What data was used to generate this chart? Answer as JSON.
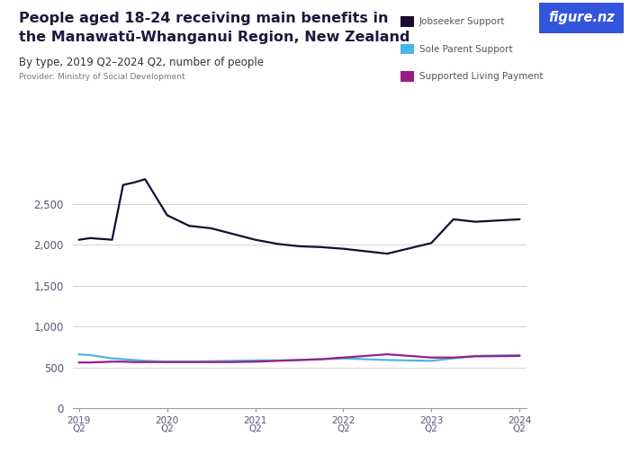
{
  "title_line1": "People aged 18-24 receiving main benefits in",
  "title_line2": "the Manawatū-Whanganui Region, New Zealand",
  "subtitle": "By type, 2019 Q2–2024 Q2, number of people",
  "provider": "Provider: Ministry of Social Development",
  "x_labels": [
    "2019\nQ2",
    "2020\nQ2",
    "2021\nQ2",
    "2022\nQ2",
    "2023\nQ2",
    "2024\nQ2"
  ],
  "x_positions": [
    0,
    4,
    8,
    12,
    16,
    20
  ],
  "jobseeker": {
    "label": "Jobseeker Support",
    "color": "#1a0a2e",
    "values": [
      2060,
      2080,
      2070,
      2060,
      2730,
      2760,
      2800,
      2360,
      2230,
      2200,
      2130,
      2060,
      2010,
      1980,
      1970,
      1950,
      1890,
      2020,
      2310,
      2280,
      2310
    ],
    "x": [
      0,
      0.5,
      1,
      1.5,
      2,
      2.5,
      3,
      4,
      5,
      6,
      7,
      8,
      9,
      10,
      11,
      12,
      14,
      16,
      17,
      18,
      20
    ]
  },
  "sole_parent": {
    "label": "Sole Parent Support",
    "color": "#4ab5e8",
    "values": [
      660,
      650,
      630,
      610,
      600,
      590,
      580,
      570,
      570,
      575,
      580,
      585,
      585,
      590,
      600,
      610,
      590,
      580,
      610,
      640,
      650
    ],
    "x": [
      0,
      0.5,
      1,
      1.5,
      2,
      2.5,
      3,
      4,
      5,
      6,
      7,
      8,
      9,
      10,
      11,
      12,
      14,
      16,
      17,
      18,
      20
    ]
  },
  "supported_living": {
    "label": "Supported Living Payment",
    "color": "#9b1d8a",
    "values": [
      560,
      560,
      565,
      570,
      570,
      565,
      565,
      565,
      565,
      565,
      565,
      570,
      580,
      590,
      600,
      620,
      660,
      620,
      620,
      635,
      640
    ],
    "x": [
      0,
      0.5,
      1,
      1.5,
      2,
      2.5,
      3,
      4,
      5,
      6,
      7,
      8,
      9,
      10,
      11,
      12,
      14,
      16,
      17,
      18,
      20
    ]
  },
  "ylim": [
    0,
    3000
  ],
  "yticks": [
    0,
    500,
    1000,
    1500,
    2000,
    2500
  ],
  "background_color": "#ffffff",
  "grid_color": "#cccccc",
  "title_color": "#1a1a3e",
  "subtitle_color": "#333333",
  "provider_color": "#777777",
  "tick_color": "#555577",
  "logo_bg": "#3355dd",
  "logo_text": "figure.nz"
}
